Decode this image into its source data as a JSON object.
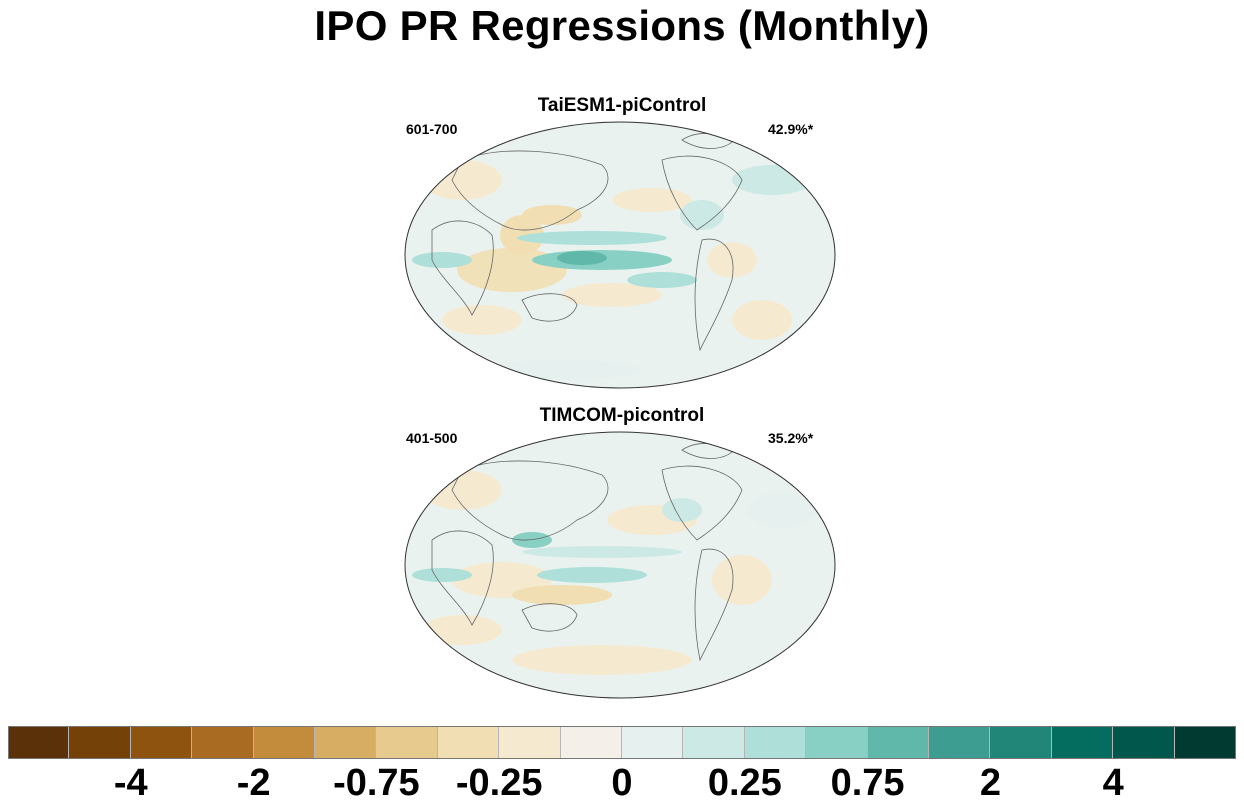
{
  "title": "IPO PR Regressions (Monthly)",
  "panels": [
    {
      "name": "TaiESM1-piControl",
      "period": "601-700",
      "percent": "42.9%*"
    },
    {
      "name": "TIMCOM-picontrol",
      "period": "401-500",
      "percent": "35.2%*"
    }
  ],
  "colorbar": {
    "colors": [
      "#5a3108",
      "#744209",
      "#8d530f",
      "#a96b22",
      "#c28c3c",
      "#d6ad63",
      "#e7ca8e",
      "#f1dfb3",
      "#f5ead0",
      "#f4f0e9",
      "#e6f1ef",
      "#cce9e5",
      "#aee0d9",
      "#89d0c4",
      "#5fb8aa",
      "#3d9d91",
      "#218578",
      "#056c60",
      "#02574c",
      "#013a31"
    ],
    "labels": [
      "-4",
      "-2",
      "-0.75",
      "-0.25",
      "0",
      "0.25",
      "0.75",
      "2",
      "4"
    ]
  }
}
